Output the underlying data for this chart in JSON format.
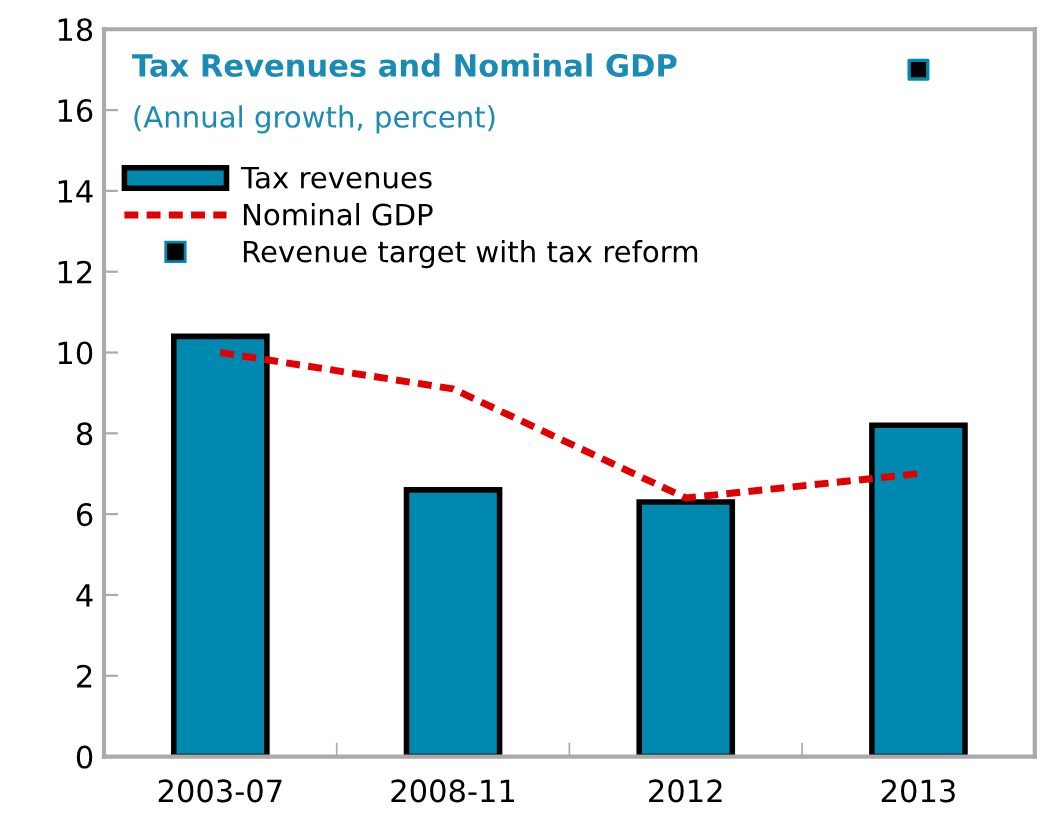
{
  "chart_data": {
    "type": "bar",
    "title": "Tax Revenues and Nominal GDP",
    "subtitle": "(Annual growth, percent)",
    "categories": [
      "2003-07",
      "2008-11",
      "2012",
      "2013"
    ],
    "series": [
      {
        "name": "Tax revenues",
        "color": "#0089b0",
        "values": [
          10.4,
          6.6,
          6.3,
          8.2
        ]
      },
      {
        "name": "Nominal GDP",
        "type": "line",
        "color": "#e00000",
        "line_style": "dashed",
        "values": [
          10.0,
          9.1,
          6.4,
          7.0
        ]
      },
      {
        "name": "Revenue target with tax reform",
        "type": "scatter",
        "marker": "square",
        "color": "#000000",
        "values": [
          null,
          null,
          null,
          17.0
        ]
      }
    ],
    "ylim": [
      0,
      18
    ],
    "yticks": [
      0,
      2,
      4,
      6,
      8,
      10,
      12,
      14,
      16,
      18
    ],
    "grid": false,
    "legend": "top left"
  }
}
